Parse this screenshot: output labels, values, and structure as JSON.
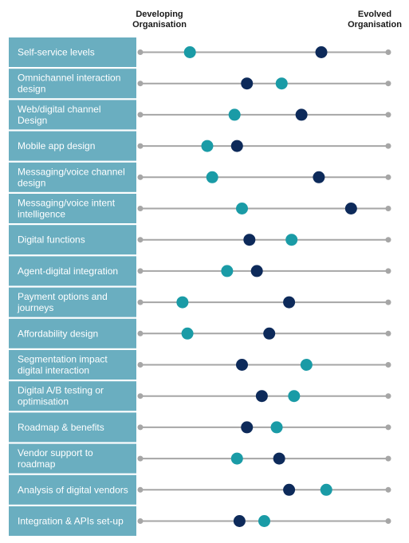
{
  "chart_data": {
    "type": "dot-plot",
    "left_label": "Developing\nOrganisation",
    "right_label": "Evolved\nOrganisation",
    "xlim": [
      0,
      100
    ],
    "colors": {
      "teal": "#1a9ba6",
      "navy": "#0d2a5a",
      "label_box": "#6aaec0",
      "track": "#a6a6a6"
    },
    "series": [
      {
        "color": "#1a9ba6",
        "values": [
          20,
          57,
          38,
          27,
          29,
          41,
          61,
          35,
          17,
          19,
          67,
          62,
          55,
          39,
          75,
          50
        ]
      },
      {
        "color": "#0d2a5a",
        "values": [
          73,
          43,
          65,
          39,
          72,
          85,
          44,
          47,
          60,
          52,
          41,
          49,
          43,
          56,
          60,
          40
        ]
      }
    ],
    "categories": [
      "Self-service levels",
      "Omnichannel interaction\ndesign",
      "Web/digital channel\nDesign",
      "Mobile app design",
      "Messaging/voice channel\ndesign",
      "Messaging/voice intent\nintelligence",
      "Digital functions",
      "Agent-digital integration",
      "Payment options and\njourneys",
      "Affordability design",
      "Segmentation impact\ndigital interaction",
      "Digital A/B testing or\noptimisation",
      "Roadmap & benefits",
      "Vendor support to\nroadmap",
      "Analysis of digital vendors",
      "Integration & APIs set-up"
    ]
  }
}
